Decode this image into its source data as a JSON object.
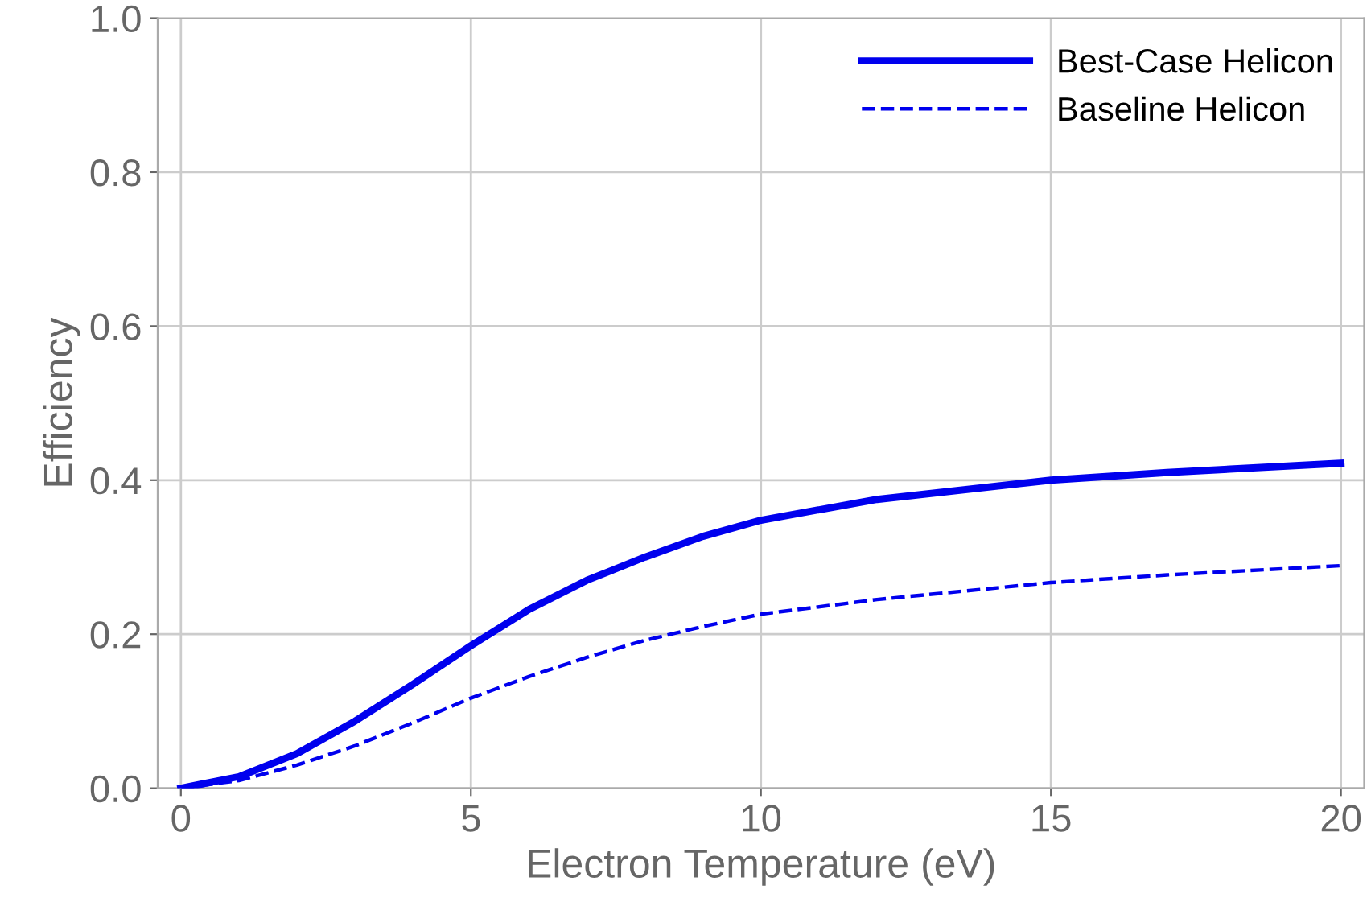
{
  "chart_data": {
    "type": "line",
    "xlabel": "Electron Temperature (eV)",
    "ylabel": "Efficiency",
    "xlim": [
      -0.4,
      20.4
    ],
    "ylim": [
      0,
      1.0
    ],
    "xticks": [
      0,
      5,
      10,
      15,
      20
    ],
    "yticks": [
      {
        "value": 0,
        "label": "0.0"
      },
      0.2,
      0.4,
      0.6,
      0.8,
      {
        "value": 1,
        "label": "1.0"
      }
    ],
    "grid": true,
    "legend": "top right",
    "marker": "none",
    "series": [
      {
        "name": "Best-Case Helicon",
        "color": "#0000ee",
        "line_style": "solid",
        "x": [
          0,
          1,
          2,
          3,
          4,
          5,
          6,
          7,
          8,
          9,
          10,
          12,
          15,
          17,
          20
        ],
        "values": [
          0,
          0.015,
          0.045,
          0.087,
          0.135,
          0.185,
          0.232,
          0.27,
          0.3,
          0.327,
          0.348,
          0.375,
          0.4,
          0.41,
          0.422
        ]
      },
      {
        "name": "Baseline Helicon",
        "color": "#0000ee",
        "line_style": "dashed",
        "x": [
          0,
          1,
          2,
          3,
          4,
          5,
          6,
          7,
          8,
          9,
          10,
          12,
          15,
          17,
          20
        ],
        "values": [
          0,
          0.01,
          0.03,
          0.055,
          0.085,
          0.117,
          0.145,
          0.17,
          0.192,
          0.21,
          0.226,
          0.245,
          0.267,
          0.277,
          0.289
        ]
      }
    ]
  }
}
